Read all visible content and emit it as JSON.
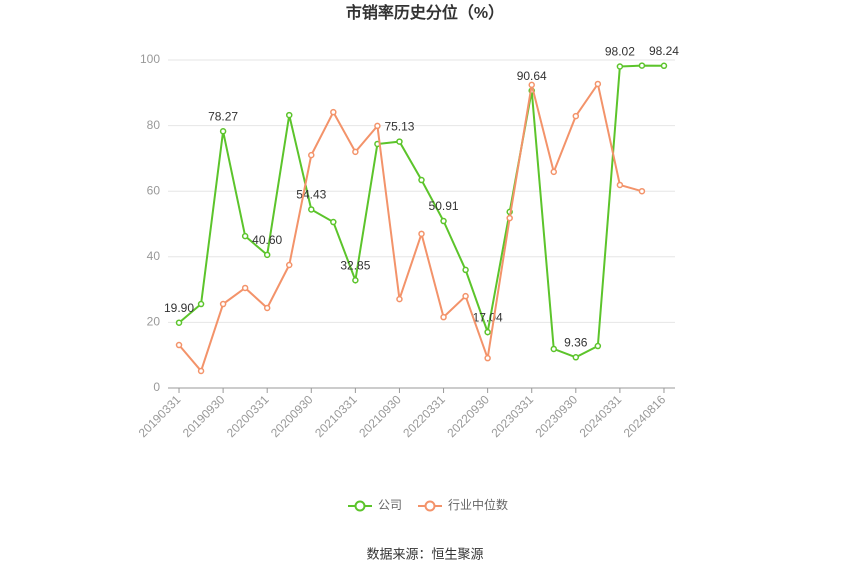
{
  "chart_data": {
    "type": "line",
    "title": "市销率历史分位（%）",
    "categories": [
      "20190331",
      null,
      "20190930",
      null,
      "20200331",
      null,
      "20200930",
      null,
      "20210331",
      null,
      "20210930",
      null,
      "20220331",
      null,
      "20220930",
      null,
      "20230331",
      null,
      "20230930",
      null,
      "20240331",
      null,
      "20240816"
    ],
    "series": [
      {
        "name": "公司",
        "color": "#5cc42b",
        "values": [
          19.9,
          25.6,
          78.27,
          46.3,
          40.6,
          83.2,
          54.43,
          50.6,
          32.85,
          74.4,
          75.13,
          63.4,
          50.91,
          36,
          17.04,
          53.7,
          90.64,
          11.9,
          9.36,
          12.8,
          98.02,
          98.3,
          98.24
        ],
        "value_labels": [
          "19.90",
          null,
          "78.27",
          null,
          "40.60",
          null,
          "54.43",
          null,
          "32.85",
          null,
          "75.13",
          null,
          "50.91",
          null,
          "17.04",
          null,
          "90.64",
          null,
          "9.36",
          null,
          "98.02",
          null,
          "98.24"
        ]
      },
      {
        "name": "行业中位数",
        "color": "#f3936a",
        "values": [
          13.1,
          5.2,
          25.6,
          30.5,
          24.4,
          37.5,
          71,
          84.1,
          72,
          79.9,
          27.1,
          47,
          21.6,
          28,
          9.1,
          51.8,
          92.4,
          65.9,
          82.9,
          92.7,
          61.9,
          60,
          null
        ]
      }
    ],
    "ylim": [
      0,
      100
    ],
    "yticks": [
      0,
      20,
      40,
      60,
      80,
      100
    ],
    "grid": true,
    "source": "数据来源：恒生聚源"
  }
}
